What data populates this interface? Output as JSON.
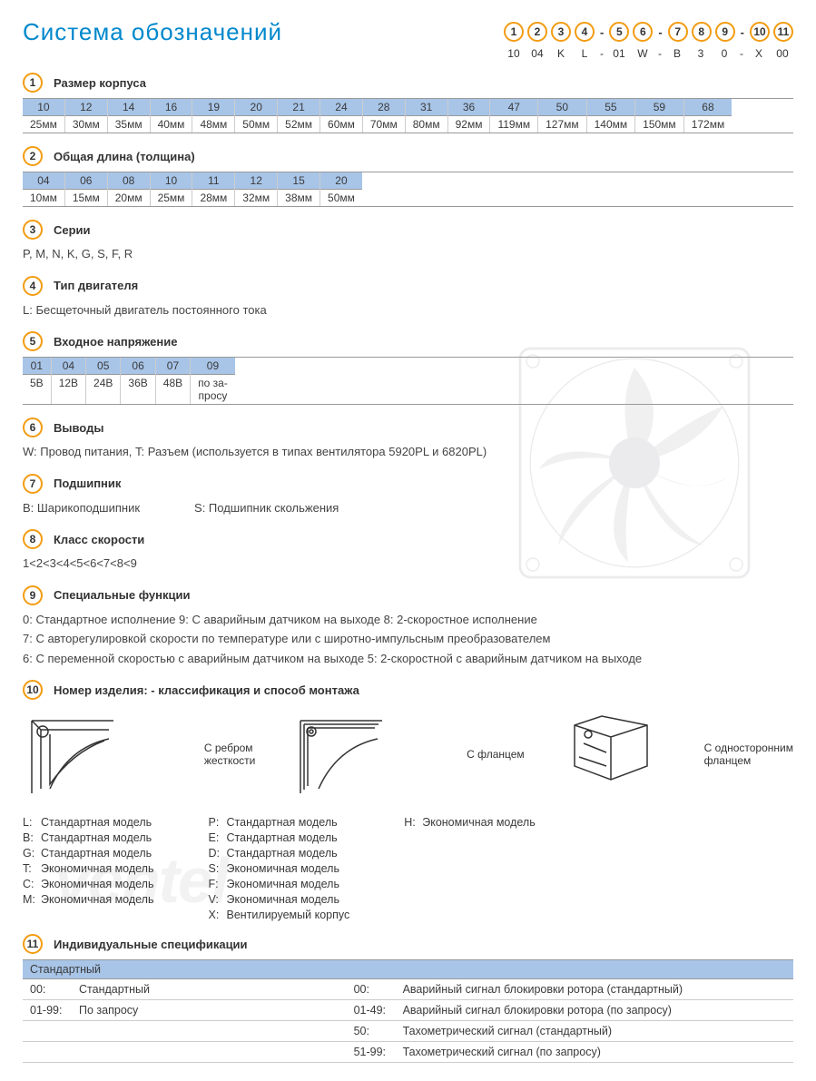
{
  "title": "Система обозначений",
  "code_key": {
    "positions": [
      "1",
      "2",
      "3",
      "4",
      "-",
      "5",
      "6",
      "-",
      "7",
      "8",
      "9",
      "-",
      "10",
      "11"
    ],
    "example": [
      "10",
      "04",
      "K",
      "L",
      "-",
      "01",
      "W",
      "-",
      "B",
      "3",
      "0",
      "-",
      "X",
      "00"
    ]
  },
  "sections": [
    {
      "num": "1",
      "title": "Размер корпуса",
      "type": "table",
      "cells": [
        {
          "t": "10",
          "b": "25мм"
        },
        {
          "t": "12",
          "b": "30мм"
        },
        {
          "t": "14",
          "b": "35мм"
        },
        {
          "t": "16",
          "b": "40мм"
        },
        {
          "t": "19",
          "b": "48мм"
        },
        {
          "t": "20",
          "b": "50мм"
        },
        {
          "t": "21",
          "b": "52мм"
        },
        {
          "t": "24",
          "b": "60мм"
        },
        {
          "t": "28",
          "b": "70мм"
        },
        {
          "t": "31",
          "b": "80мм"
        },
        {
          "t": "36",
          "b": "92мм"
        },
        {
          "t": "47",
          "b": "119мм"
        },
        {
          "t": "50",
          "b": "127мм"
        },
        {
          "t": "55",
          "b": "140мм"
        },
        {
          "t": "59",
          "b": "150мм"
        },
        {
          "t": "68",
          "b": "172мм"
        }
      ]
    },
    {
      "num": "2",
      "title": "Общая длина (толщина)",
      "type": "table",
      "cells": [
        {
          "t": "04",
          "b": "10мм"
        },
        {
          "t": "06",
          "b": "15мм"
        },
        {
          "t": "08",
          "b": "20мм"
        },
        {
          "t": "10",
          "b": "25мм"
        },
        {
          "t": "11",
          "b": "28мм"
        },
        {
          "t": "12",
          "b": "32мм"
        },
        {
          "t": "15",
          "b": "38мм"
        },
        {
          "t": "20",
          "b": "50мм"
        }
      ]
    },
    {
      "num": "3",
      "title": "Серии",
      "type": "text",
      "text": "P, M, N, K, G, S, F, R"
    },
    {
      "num": "4",
      "title": "Тип двигателя",
      "type": "text",
      "text": "L: Бесщеточный двигатель постоянного тока"
    },
    {
      "num": "5",
      "title": "Входное напряжение",
      "type": "table",
      "cells": [
        {
          "t": "01",
          "b": "5В"
        },
        {
          "t": "04",
          "b": "12В"
        },
        {
          "t": "05",
          "b": "24В"
        },
        {
          "t": "06",
          "b": "36В"
        },
        {
          "t": "07",
          "b": "48В"
        },
        {
          "t": "09",
          "b": "по за-\nпросу"
        }
      ]
    },
    {
      "num": "6",
      "title": "Выводы",
      "type": "text",
      "text": "W: Провод питания, T: Разъем (используется в типах вентилятора  5920PL и 6820PL)"
    },
    {
      "num": "7",
      "title": "Подшипник",
      "type": "twocol",
      "left": "B: Шарикоподшипник",
      "right": "S: Подшипник скольжения"
    },
    {
      "num": "8",
      "title": "Класс скорости",
      "type": "text",
      "text": "1<2<3<4<5<6<7<8<9"
    },
    {
      "num": "9",
      "title": "Специальные функции",
      "type": "multiline",
      "lines": [
        "0: Стандартное исполнение   9:  С аварийным датчиком на выходе   8: 2-скоростное исполнение",
        "7: С авторегулировкой скорости по температуре или с широтно-импульсным преобразователем",
        "6: С переменной скоростью с аварийным датчиком на выходе   5: 2-скоростной с аварийным датчиком на выходе"
      ]
    },
    {
      "num": "10",
      "title": "Номер изделия: - классификация  и способ монтажа",
      "type": "mount"
    },
    {
      "num": "11",
      "title": "Индивидуальные спецификации",
      "type": "spec"
    }
  ],
  "mount": {
    "figures": [
      {
        "label": "С ребром\nжесткости"
      },
      {
        "label": "С фланцем"
      },
      {
        "label": "С односторонним\nфланцем"
      }
    ],
    "cols": [
      [
        {
          "c": "L:",
          "t": "Стандартная модель"
        },
        {
          "c": "B:",
          "t": "Стандартная модель"
        },
        {
          "c": "G:",
          "t": "Стандартная модель"
        },
        {
          "c": "T:",
          "t": "Экономичная модель"
        },
        {
          "c": "C:",
          "t": "Экономичная модель"
        },
        {
          "c": "M:",
          "t": "Экономичная модель"
        }
      ],
      [
        {
          "c": "P:",
          "t": "Стандартная модель"
        },
        {
          "c": "E:",
          "t": "Стандартная модель"
        },
        {
          "c": "D:",
          "t": "Стандартная модель"
        },
        {
          "c": "S:",
          "t": "Экономичная модель"
        },
        {
          "c": "F:",
          "t": "Экономичная модель"
        },
        {
          "c": "V:",
          "t": "Экономичная модель"
        },
        {
          "c": "X:",
          "t": "Вентилируемый корпус"
        }
      ],
      [
        {
          "c": "H:",
          "t": "Экономичная модель"
        }
      ]
    ]
  },
  "spec": {
    "header": "Стандартный",
    "rows": [
      {
        "lc": "00:",
        "lt": "Стандартный",
        "rc": "00:",
        "rt": "Аварийный сигнал блокировки ротора (стандартный)"
      },
      {
        "lc": "01-99:",
        "lt": "По запросу",
        "rc": "01-49:",
        "rt": "Аварийный сигнал блокировки ротора (по запросу)"
      },
      {
        "lc": "",
        "lt": "",
        "rc": "50:",
        "rt": "Тахометрический сигнал (стандартный)"
      },
      {
        "lc": "",
        "lt": "",
        "rc": "51-99:",
        "rt": "Тахометрический сигнал (по запросу)"
      }
    ]
  },
  "colors": {
    "accent": "#0088cc",
    "circle": "#f39c12",
    "table_header": "#a8c5e8",
    "border": "#999999"
  },
  "watermark": "ventel"
}
